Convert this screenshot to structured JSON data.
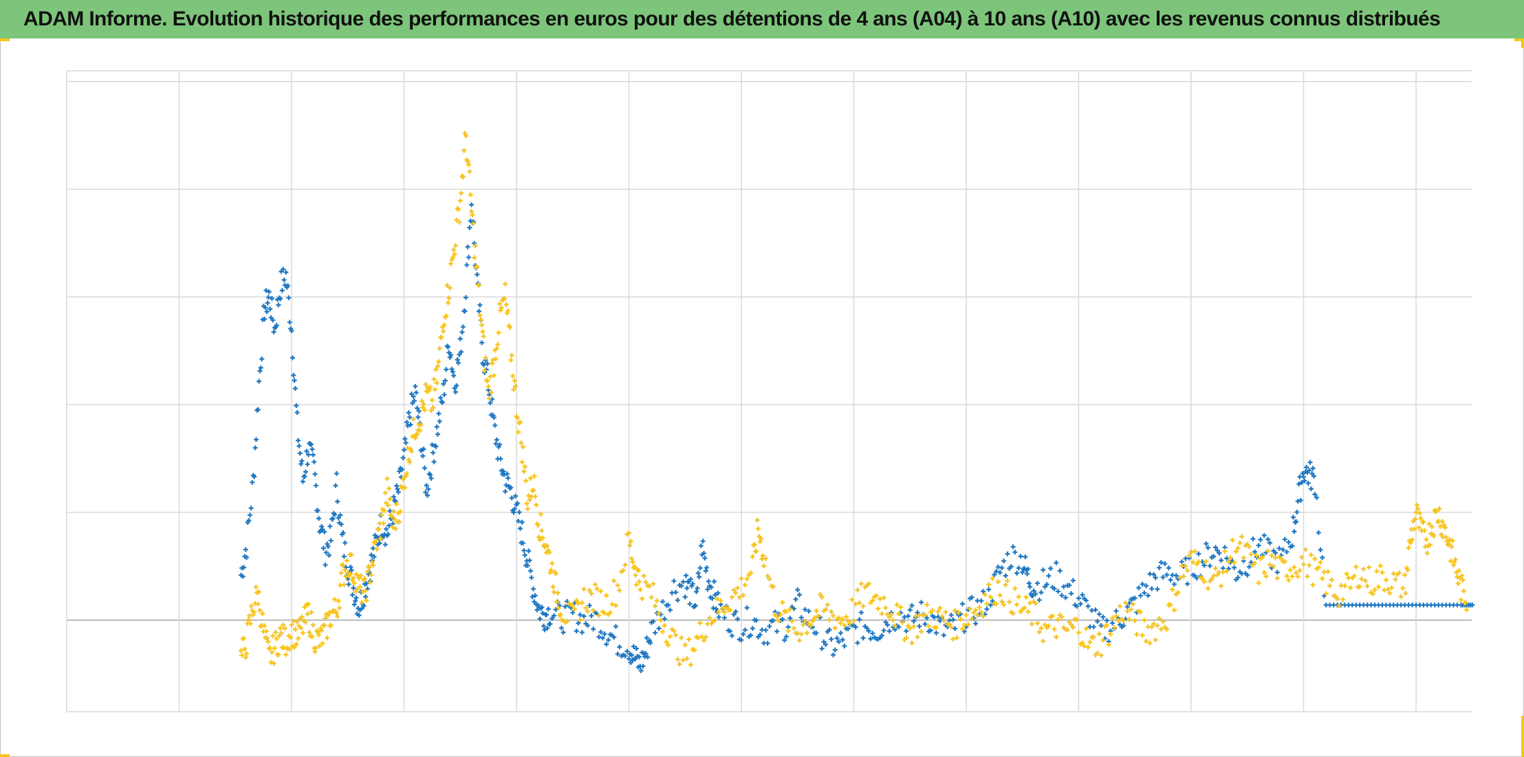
{
  "title": "ADAM Informe. Evolution historique des performances en euros pour des détentions de 4 ans (A04) à 10 ans (A10) avec les revenus connus distribués",
  "colors": {
    "title_bar": "#7dc57a",
    "series_blue": "#1f77c1",
    "series_yellow": "#f7c31c",
    "grid": "#d9d9d9",
    "zero_line": "#bfbfbf",
    "corner_marks": "#f5c518"
  },
  "chart_data": {
    "type": "scatter",
    "title": "ADAM Informe. Evolution historique des performances en euros pour des détentions de 4 ans (A04) à 10 ans (A10) avec les revenus connus distribués",
    "xlabel": "",
    "ylabel": "",
    "x_range": [
      0,
      12.5
    ],
    "y_range": [
      -0.85,
      5.1
    ],
    "grid": true,
    "legend": "none",
    "marker": "plus",
    "gridlines_x": [
      0,
      1,
      2,
      3,
      4,
      5,
      6,
      7,
      8,
      9,
      10,
      11,
      12
    ],
    "gridlines_y": [
      -0.85,
      0,
      1,
      2,
      3,
      4,
      5
    ],
    "series": [
      {
        "color": "#1f77c1",
        "points": [
          [
            1.55,
            0.42
          ],
          [
            1.6,
            0.7
          ],
          [
            1.66,
            1.3
          ],
          [
            1.71,
            2.2
          ],
          [
            1.76,
            2.9
          ],
          [
            1.8,
            3.0
          ],
          [
            1.85,
            2.7
          ],
          [
            1.9,
            3.1
          ],
          [
            1.95,
            3.2
          ],
          [
            2.0,
            2.7
          ],
          [
            2.05,
            1.8
          ],
          [
            2.1,
            1.3
          ],
          [
            2.15,
            1.6
          ],
          [
            2.2,
            1.4
          ],
          [
            2.25,
            0.9
          ],
          [
            2.3,
            0.65
          ],
          [
            2.35,
            0.75
          ],
          [
            2.4,
            1.25
          ],
          [
            2.45,
            0.75
          ],
          [
            2.5,
            0.5
          ],
          [
            2.55,
            0.3
          ],
          [
            2.6,
            0.12
          ],
          [
            2.65,
            0.3
          ],
          [
            2.7,
            0.5
          ],
          [
            2.75,
            0.7
          ],
          [
            2.8,
            0.9
          ],
          [
            2.85,
            0.8
          ],
          [
            2.9,
            1.0
          ],
          [
            2.95,
            1.2
          ],
          [
            3.0,
            1.5
          ],
          [
            3.05,
            1.9
          ],
          [
            3.1,
            2.1
          ],
          [
            3.15,
            1.7
          ],
          [
            3.2,
            1.2
          ],
          [
            3.25,
            1.5
          ],
          [
            3.3,
            1.8
          ],
          [
            3.35,
            2.1
          ],
          [
            3.4,
            2.6
          ],
          [
            3.45,
            2.2
          ],
          [
            3.5,
            2.5
          ],
          [
            3.55,
            3.1
          ],
          [
            3.6,
            3.9
          ],
          [
            3.65,
            3.1
          ],
          [
            3.7,
            2.5
          ],
          [
            3.75,
            2.2
          ],
          [
            3.8,
            1.8
          ],
          [
            3.85,
            1.5
          ],
          [
            3.9,
            1.3
          ],
          [
            3.95,
            1.2
          ],
          [
            4.0,
            1.0
          ],
          [
            4.05,
            0.8
          ],
          [
            4.1,
            0.55
          ],
          [
            4.15,
            0.3
          ],
          [
            4.2,
            0.1
          ],
          [
            4.25,
            0.05
          ],
          [
            4.3,
            0.08
          ],
          [
            4.4,
            0.02
          ],
          [
            4.5,
            0.05
          ],
          [
            4.6,
            0.0
          ],
          [
            4.7,
            0.02
          ],
          [
            4.8,
            -0.1
          ],
          [
            4.9,
            -0.2
          ],
          [
            5.0,
            -0.25
          ],
          [
            5.05,
            -0.35
          ],
          [
            5.1,
            -0.42
          ],
          [
            5.15,
            -0.3
          ],
          [
            5.2,
            -0.1
          ],
          [
            5.3,
            0.1
          ],
          [
            5.4,
            0.3
          ],
          [
            5.5,
            0.35
          ],
          [
            5.55,
            0.25
          ],
          [
            5.6,
            0.15
          ],
          [
            5.65,
            0.7
          ],
          [
            5.7,
            0.4
          ],
          [
            5.75,
            0.25
          ],
          [
            5.8,
            0.1
          ],
          [
            5.9,
            0.0
          ],
          [
            6.0,
            -0.05
          ],
          [
            6.1,
            0.0
          ],
          [
            6.2,
            -0.1
          ],
          [
            6.3,
            -0.05
          ],
          [
            6.4,
            -0.05
          ],
          [
            6.5,
            0.15
          ],
          [
            6.6,
            0.0
          ],
          [
            6.7,
            -0.1
          ],
          [
            6.8,
            -0.25
          ],
          [
            6.9,
            -0.2
          ],
          [
            7.0,
            -0.1
          ],
          [
            7.1,
            -0.05
          ],
          [
            7.2,
            -0.1
          ],
          [
            7.3,
            0.0
          ],
          [
            7.4,
            0.05
          ],
          [
            7.5,
            0.0
          ],
          [
            7.6,
            0.05
          ],
          [
            7.7,
            0.0
          ],
          [
            7.8,
            -0.1
          ],
          [
            7.9,
            -0.05
          ],
          [
            8.0,
            0.05
          ],
          [
            8.1,
            0.1
          ],
          [
            8.2,
            0.2
          ],
          [
            8.3,
            0.45
          ],
          [
            8.4,
            0.6
          ],
          [
            8.5,
            0.55
          ],
          [
            8.55,
            0.4
          ],
          [
            8.6,
            0.3
          ],
          [
            8.7,
            0.35
          ],
          [
            8.8,
            0.4
          ],
          [
            8.9,
            0.3
          ],
          [
            9.0,
            0.2
          ],
          [
            9.1,
            0.05
          ],
          [
            9.2,
            -0.1
          ],
          [
            9.3,
            -0.05
          ],
          [
            9.4,
            0.05
          ],
          [
            9.5,
            0.15
          ],
          [
            9.6,
            0.3
          ],
          [
            9.7,
            0.4
          ],
          [
            9.8,
            0.45
          ],
          [
            9.9,
            0.4
          ],
          [
            10.0,
            0.5
          ],
          [
            10.1,
            0.55
          ],
          [
            10.2,
            0.65
          ],
          [
            10.3,
            0.6
          ],
          [
            10.4,
            0.45
          ],
          [
            10.5,
            0.55
          ],
          [
            10.6,
            0.7
          ],
          [
            10.7,
            0.6
          ],
          [
            10.8,
            0.55
          ],
          [
            10.9,
            0.8
          ],
          [
            10.95,
            1.1
          ],
          [
            11.0,
            1.4
          ],
          [
            11.05,
            1.35
          ],
          [
            11.1,
            1.3
          ],
          [
            11.2,
            0.14
          ],
          [
            11.4,
            0.14
          ],
          [
            11.6,
            0.14
          ],
          [
            11.8,
            0.14
          ],
          [
            12.0,
            0.14
          ],
          [
            12.2,
            0.14
          ],
          [
            12.4,
            0.14
          ],
          [
            12.5,
            0.14
          ]
        ]
      },
      {
        "color": "#f7c31c",
        "points": [
          [
            1.55,
            -0.35
          ],
          [
            1.6,
            -0.2
          ],
          [
            1.65,
            0.1
          ],
          [
            1.7,
            0.25
          ],
          [
            1.75,
            -0.1
          ],
          [
            1.8,
            -0.35
          ],
          [
            1.85,
            -0.25
          ],
          [
            1.9,
            -0.15
          ],
          [
            1.95,
            -0.2
          ],
          [
            2.0,
            -0.1
          ],
          [
            2.05,
            -0.15
          ],
          [
            2.1,
            -0.05
          ],
          [
            2.15,
            0.05
          ],
          [
            2.2,
            -0.15
          ],
          [
            2.25,
            -0.2
          ],
          [
            2.3,
            -0.1
          ],
          [
            2.35,
            0.05
          ],
          [
            2.4,
            0.1
          ],
          [
            2.45,
            0.4
          ],
          [
            2.5,
            0.55
          ],
          [
            2.55,
            0.45
          ],
          [
            2.6,
            0.3
          ],
          [
            2.65,
            0.25
          ],
          [
            2.7,
            0.45
          ],
          [
            2.75,
            0.7
          ],
          [
            2.8,
            0.9
          ],
          [
            2.85,
            1.2
          ],
          [
            2.9,
            0.9
          ],
          [
            2.95,
            1.0
          ],
          [
            3.0,
            1.3
          ],
          [
            3.05,
            1.6
          ],
          [
            3.1,
            1.8
          ],
          [
            3.15,
            1.9
          ],
          [
            3.2,
            2.1
          ],
          [
            3.25,
            2.0
          ],
          [
            3.3,
            2.3
          ],
          [
            3.35,
            2.8
          ],
          [
            3.4,
            3.1
          ],
          [
            3.45,
            3.5
          ],
          [
            3.5,
            3.9
          ],
          [
            3.55,
            4.5
          ],
          [
            3.6,
            3.8
          ],
          [
            3.65,
            3.2
          ],
          [
            3.7,
            2.6
          ],
          [
            3.75,
            2.1
          ],
          [
            3.8,
            2.4
          ],
          [
            3.85,
            2.8
          ],
          [
            3.9,
            3.0
          ],
          [
            3.95,
            2.5
          ],
          [
            4.0,
            2.0
          ],
          [
            4.05,
            1.6
          ],
          [
            4.1,
            1.1
          ],
          [
            4.15,
            1.3
          ],
          [
            4.2,
            0.9
          ],
          [
            4.25,
            0.75
          ],
          [
            4.3,
            0.55
          ],
          [
            4.35,
            0.3
          ],
          [
            4.4,
            0.1
          ],
          [
            4.5,
            0.0
          ],
          [
            4.6,
            0.2
          ],
          [
            4.7,
            0.2
          ],
          [
            4.8,
            0.15
          ],
          [
            4.9,
            0.3
          ],
          [
            5.0,
            0.75
          ],
          [
            5.05,
            0.5
          ],
          [
            5.1,
            0.35
          ],
          [
            5.2,
            0.25
          ],
          [
            5.3,
            0.0
          ],
          [
            5.4,
            -0.2
          ],
          [
            5.5,
            -0.35
          ],
          [
            5.6,
            -0.2
          ],
          [
            5.7,
            0.0
          ],
          [
            5.8,
            0.1
          ],
          [
            5.9,
            0.2
          ],
          [
            6.0,
            0.3
          ],
          [
            6.1,
            0.5
          ],
          [
            6.15,
            0.85
          ],
          [
            6.2,
            0.6
          ],
          [
            6.3,
            0.15
          ],
          [
            6.4,
            0.0
          ],
          [
            6.5,
            -0.1
          ],
          [
            6.6,
            0.0
          ],
          [
            6.7,
            0.1
          ],
          [
            6.8,
            0.05
          ],
          [
            6.9,
            0.0
          ],
          [
            7.0,
            0.1
          ],
          [
            7.1,
            0.25
          ],
          [
            7.2,
            0.2
          ],
          [
            7.3,
            0.15
          ],
          [
            7.4,
            0.0
          ],
          [
            7.5,
            -0.1
          ],
          [
            7.6,
            0.0
          ],
          [
            7.7,
            0.05
          ],
          [
            7.8,
            0.0
          ],
          [
            7.9,
            -0.05
          ],
          [
            8.0,
            0.05
          ],
          [
            8.1,
            0.1
          ],
          [
            8.2,
            0.25
          ],
          [
            8.3,
            0.3
          ],
          [
            8.4,
            0.2
          ],
          [
            8.5,
            0.1
          ],
          [
            8.6,
            0.05
          ],
          [
            8.7,
            -0.1
          ],
          [
            8.8,
            -0.05
          ],
          [
            8.9,
            -0.1
          ],
          [
            9.0,
            -0.05
          ],
          [
            9.1,
            -0.25
          ],
          [
            9.2,
            -0.2
          ],
          [
            9.3,
            -0.05
          ],
          [
            9.4,
            0.1
          ],
          [
            9.5,
            0.0
          ],
          [
            9.6,
            -0.1
          ],
          [
            9.7,
            -0.05
          ],
          [
            9.8,
            0.05
          ],
          [
            9.9,
            0.4
          ],
          [
            10.0,
            0.55
          ],
          [
            10.1,
            0.5
          ],
          [
            10.2,
            0.35
          ],
          [
            10.3,
            0.5
          ],
          [
            10.4,
            0.7
          ],
          [
            10.5,
            0.6
          ],
          [
            10.6,
            0.45
          ],
          [
            10.7,
            0.55
          ],
          [
            10.8,
            0.45
          ],
          [
            10.9,
            0.5
          ],
          [
            11.0,
            0.55
          ],
          [
            11.1,
            0.45
          ],
          [
            11.2,
            0.35
          ],
          [
            11.3,
            0.25
          ],
          [
            11.4,
            0.3
          ],
          [
            11.5,
            0.45
          ],
          [
            11.6,
            0.35
          ],
          [
            11.7,
            0.4
          ],
          [
            11.8,
            0.35
          ],
          [
            11.9,
            0.3
          ],
          [
            11.95,
            0.75
          ],
          [
            12.0,
            1.0
          ],
          [
            12.05,
            0.8
          ],
          [
            12.1,
            0.75
          ],
          [
            12.15,
            0.9
          ],
          [
            12.2,
            1.0
          ],
          [
            12.25,
            0.85
          ],
          [
            12.3,
            0.7
          ],
          [
            12.35,
            0.5
          ],
          [
            12.4,
            0.3
          ],
          [
            12.45,
            0.2
          ]
        ]
      }
    ]
  }
}
